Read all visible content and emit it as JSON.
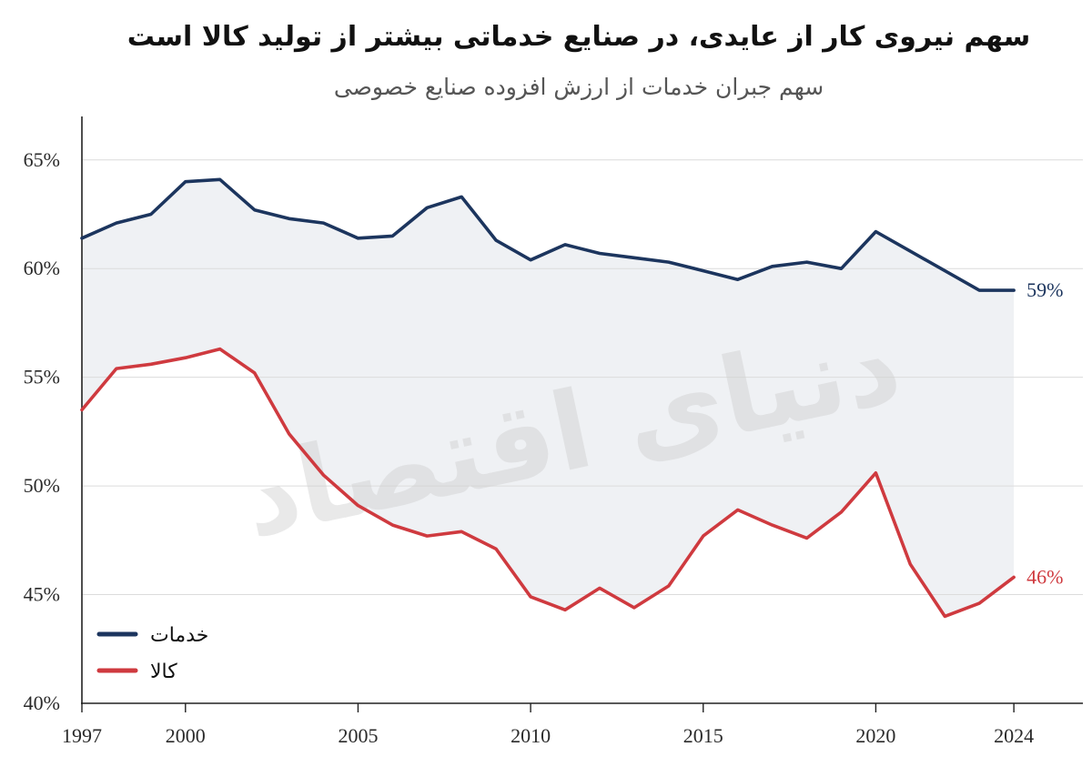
{
  "colors": {
    "band": "#eff1f4",
    "grid": "#dcdcdc",
    "watermark": "#cfcfcf"
  },
  "watermark": "دنیای اقتصاد",
  "chart_data": {
    "type": "line",
    "title": "سهم نیروی کار از عایدی، در صنایع خدماتی بیشتر از تولید کالا است",
    "subtitle": "سهم جبران خدمات از ارزش افزوده صنایع خصوصی",
    "xlabel": "",
    "ylabel": "",
    "x": [
      1997,
      1998,
      1999,
      2000,
      2001,
      2002,
      2003,
      2004,
      2005,
      2006,
      2007,
      2008,
      2009,
      2010,
      2011,
      2012,
      2013,
      2014,
      2015,
      2016,
      2017,
      2018,
      2019,
      2020,
      2021,
      2022,
      2023,
      2024
    ],
    "x_ticks": [
      1997,
      2000,
      2005,
      2010,
      2015,
      2020,
      2024
    ],
    "y_ticks": [
      40,
      45,
      50,
      55,
      60,
      65
    ],
    "y_tick_labels": [
      "40%",
      "45%",
      "50%",
      "55%",
      "60%",
      "65%"
    ],
    "xlim": [
      1997,
      2026
    ],
    "ylim": [
      40,
      67
    ],
    "grid": true,
    "legend_position": "bottom-left",
    "fill_between_series": true,
    "series": [
      {
        "name": "خدمات",
        "color": "#1c355e",
        "end_label": "59%",
        "values": [
          61.4,
          62.1,
          62.5,
          64.0,
          64.1,
          62.7,
          62.3,
          62.1,
          61.4,
          61.5,
          62.8,
          63.3,
          61.3,
          60.4,
          61.1,
          60.7,
          60.5,
          60.3,
          59.9,
          59.5,
          60.1,
          60.3,
          60.0,
          61.7,
          60.8,
          59.9,
          59.0,
          59.0
        ]
      },
      {
        "name": "کالا",
        "color": "#cf3a3f",
        "end_label": "46%",
        "values": [
          53.5,
          55.4,
          55.6,
          55.9,
          56.3,
          55.2,
          52.4,
          50.5,
          49.1,
          48.2,
          47.7,
          47.9,
          47.1,
          44.9,
          44.3,
          45.3,
          44.4,
          45.4,
          47.7,
          48.9,
          48.2,
          47.6,
          48.8,
          50.6,
          46.4,
          44.0,
          44.6,
          45.8
        ]
      }
    ]
  }
}
